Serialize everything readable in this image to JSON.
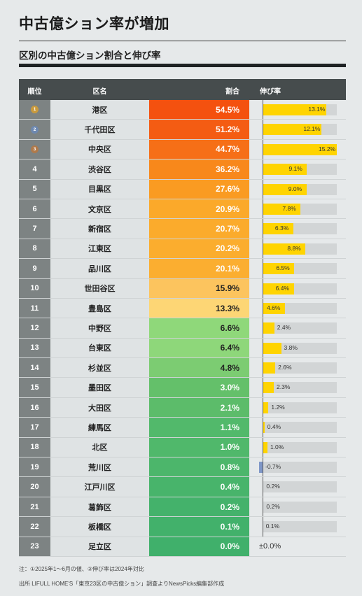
{
  "header": {
    "title": "中古億ション率が増加",
    "subtitle": "区別の中古億ション割合と伸び率"
  },
  "columns": {
    "rank": "順位",
    "ward": "区名",
    "share": "割合",
    "growth": "伸び率"
  },
  "colors": {
    "growth_positive": "#ffd400",
    "growth_negative": "#7f97c8",
    "rank_bg": "#7d8383",
    "header_bg": "#464c4d",
    "medal_gold": "#c99a3d",
    "medal_silver": "#6d88b0",
    "medal_bronze": "#b07a4a"
  },
  "chart_data": {
    "type": "table",
    "share_unit": "%",
    "growth_unit": "%",
    "rows": [
      {
        "rank": "1",
        "medal": "gold",
        "ward": "港区",
        "share": 54.5,
        "share_label": "54.5%",
        "share_color": "#f4510f",
        "growth": 13.1,
        "growth_label": "13.1%"
      },
      {
        "rank": "2",
        "medal": "silver",
        "ward": "千代田区",
        "share": 51.2,
        "share_label": "51.2%",
        "share_color": "#f45c13",
        "growth": 12.1,
        "growth_label": "12.1%"
      },
      {
        "rank": "3",
        "medal": "bronze",
        "ward": "中央区",
        "share": 44.7,
        "share_label": "44.7%",
        "share_color": "#f66f17",
        "growth": 15.2,
        "growth_label": "15.2%"
      },
      {
        "rank": "4",
        "medal": "",
        "ward": "渋谷区",
        "share": 36.2,
        "share_label": "36.2%",
        "share_color": "#f8881b",
        "growth": 9.1,
        "growth_label": "9.1%"
      },
      {
        "rank": "5",
        "medal": "",
        "ward": "目黒区",
        "share": 27.6,
        "share_label": "27.6%",
        "share_color": "#fa9b22",
        "growth": 9.0,
        "growth_label": "9.0%"
      },
      {
        "rank": "6",
        "medal": "",
        "ward": "文京区",
        "share": 20.9,
        "share_label": "20.9%",
        "share_color": "#fba92a",
        "growth": 7.8,
        "growth_label": "7.8%"
      },
      {
        "rank": "7",
        "medal": "",
        "ward": "新宿区",
        "share": 20.7,
        "share_label": "20.7%",
        "share_color": "#fbab2c",
        "growth": 6.3,
        "growth_label": "6.3%"
      },
      {
        "rank": "8",
        "medal": "",
        "ward": "江東区",
        "share": 20.2,
        "share_label": "20.2%",
        "share_color": "#fbad2e",
        "growth": 8.8,
        "growth_label": "8.8%"
      },
      {
        "rank": "9",
        "medal": "",
        "ward": "品川区",
        "share": 20.1,
        "share_label": "20.1%",
        "share_color": "#fbae30",
        "growth": 6.5,
        "growth_label": "6.5%"
      },
      {
        "rank": "10",
        "medal": "",
        "ward": "世田谷区",
        "share": 15.9,
        "share_label": "15.9%",
        "share_color": "#fcc45e",
        "growth": 6.4,
        "growth_label": "6.4%"
      },
      {
        "rank": "11",
        "medal": "",
        "ward": "豊島区",
        "share": 13.3,
        "share_label": "13.3%",
        "share_color": "#fdd675",
        "growth": 4.6,
        "growth_label": "4.6%"
      },
      {
        "rank": "12",
        "medal": "",
        "ward": "中野区",
        "share": 6.6,
        "share_label": "6.6%",
        "share_color": "#8fd87a",
        "growth": 2.4,
        "growth_label": "2.4%"
      },
      {
        "rank": "13",
        "medal": "",
        "ward": "台東区",
        "share": 6.4,
        "share_label": "6.4%",
        "share_color": "#8ed77a",
        "growth": 3.8,
        "growth_label": "3.8%"
      },
      {
        "rank": "14",
        "medal": "",
        "ward": "杉並区",
        "share": 4.8,
        "share_label": "4.8%",
        "share_color": "#7ccc72",
        "growth": 2.6,
        "growth_label": "2.6%"
      },
      {
        "rank": "15",
        "medal": "",
        "ward": "墨田区",
        "share": 3.0,
        "share_label": "3.0%",
        "share_color": "#64c06a",
        "growth": 2.3,
        "growth_label": "2.3%"
      },
      {
        "rank": "16",
        "medal": "",
        "ward": "大田区",
        "share": 2.1,
        "share_label": "2.1%",
        "share_color": "#5cbc6a",
        "growth": 1.2,
        "growth_label": "1.2%"
      },
      {
        "rank": "17",
        "medal": "",
        "ward": "練馬区",
        "share": 1.1,
        "share_label": "1.1%",
        "share_color": "#52b96b",
        "growth": 0.4,
        "growth_label": "0.4%"
      },
      {
        "rank": "18",
        "medal": "",
        "ward": "北区",
        "share": 1.0,
        "share_label": "1.0%",
        "share_color": "#50b86b",
        "growth": 1.0,
        "growth_label": "1.0%"
      },
      {
        "rank": "19",
        "medal": "",
        "ward": "荒川区",
        "share": 0.8,
        "share_label": "0.8%",
        "share_color": "#4cb66b",
        "growth": -0.7,
        "growth_label": "-0.7%"
      },
      {
        "rank": "20",
        "medal": "",
        "ward": "江戸川区",
        "share": 0.4,
        "share_label": "0.4%",
        "share_color": "#48b46b",
        "growth": 0.2,
        "growth_label": "0.2%"
      },
      {
        "rank": "21",
        "medal": "",
        "ward": "葛飾区",
        "share": 0.2,
        "share_label": "0.2%",
        "share_color": "#44b26b",
        "growth": 0.2,
        "growth_label": "0.2%"
      },
      {
        "rank": "22",
        "medal": "",
        "ward": "板橋区",
        "share": 0.1,
        "share_label": "0.1%",
        "share_color": "#42b16b",
        "growth": 0.1,
        "growth_label": "0.1%"
      },
      {
        "rank": "23",
        "medal": "",
        "ward": "足立区",
        "share": 0.0,
        "share_label": "0.0%",
        "share_color": "#40b06b",
        "growth": 0.0,
        "growth_label": "±0.0%"
      }
    ]
  },
  "footer": {
    "notes": "注：①2025年1〜6月の値、②伸び率は2024年対比",
    "source": "出所 LIFULL HOME'S「東京23区の中古億ション」調査よりNewsPicks編集部作成"
  }
}
